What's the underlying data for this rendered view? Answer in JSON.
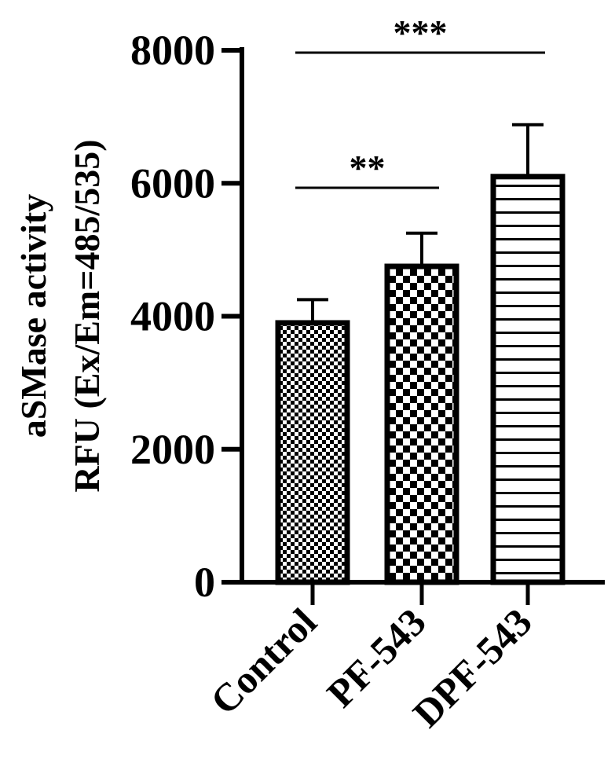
{
  "chart_data": {
    "type": "bar",
    "categories": [
      "Control",
      "PF-543",
      "DPF-543"
    ],
    "values": [
      3900,
      4750,
      6100
    ],
    "errors": [
      350,
      500,
      780
    ],
    "ylabel_line1": "aSMase activity",
    "ylabel_line2": "RFU (Ex/Em=485/535)",
    "xlabel": "",
    "ylim": [
      0,
      8000
    ],
    "yticks": [
      "0",
      "2000",
      "4000",
      "6000",
      "8000"
    ],
    "patterns": [
      "fine-checker",
      "coarse-checker",
      "horizontal-stripes"
    ],
    "significance": [
      {
        "from": "Control",
        "to": "PF-543",
        "label": "**"
      },
      {
        "from": "Control",
        "to": "DPF-543",
        "label": "***"
      }
    ],
    "grid": false,
    "legend": "none"
  },
  "colors": {
    "ink": "#000000",
    "background": "#ffffff"
  }
}
